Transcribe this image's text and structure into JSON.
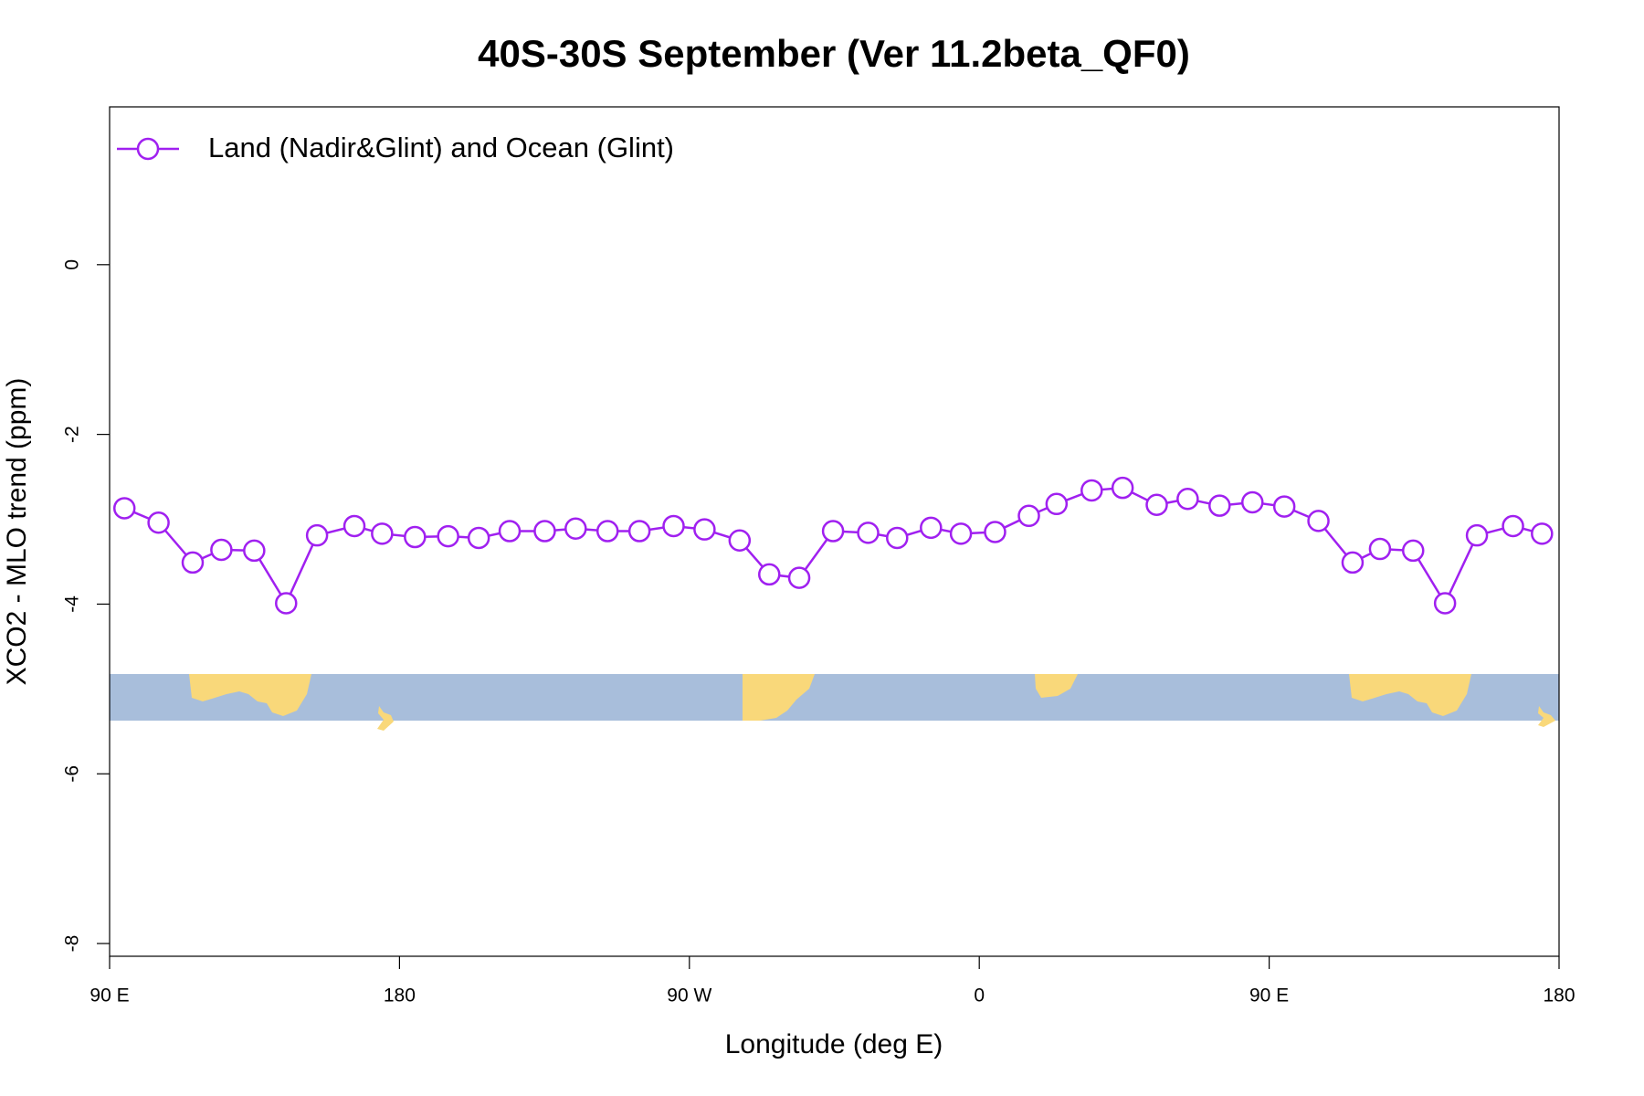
{
  "chart_data": {
    "type": "line",
    "title": "40S-30S September (Ver 11.2beta_QF0)",
    "x_label": "Longitude (deg E)",
    "y_label": "XCO2 - MLO trend (ppm)",
    "x": [
      94.6,
      105.2,
      115.8,
      124.7,
      134.9,
      144.8,
      154.4,
      166.0,
      174.6,
      184.8,
      195.1,
      204.6,
      214.2,
      225.1,
      234.7,
      244.6,
      254.5,
      265.1,
      274.7,
      285.6,
      294.8,
      304.1,
      314.6,
      325.5,
      334.5,
      345.0,
      354.3,
      364.9,
      375.4,
      384.0,
      394.9,
      404.5,
      415.1,
      424.7,
      434.6,
      444.8,
      454.7,
      465.3,
      475.9,
      484.4,
      494.7,
      504.6,
      514.5,
      525.7,
      534.7
    ],
    "series": [
      {
        "name": "Land (Nadir&Glint) and Ocean (Glint)",
        "color": "#a020f0",
        "values": [
          -2.87,
          -3.04,
          -3.51,
          -3.36,
          -3.37,
          -3.99,
          -3.19,
          -3.08,
          -3.17,
          -3.21,
          -3.2,
          -3.22,
          -3.14,
          -3.14,
          -3.11,
          -3.14,
          -3.14,
          -3.08,
          -3.12,
          -3.25,
          -3.65,
          -3.69,
          -3.14,
          -3.16,
          -3.22,
          -3.1,
          -3.17,
          -3.15,
          -2.96,
          -2.82,
          -2.66,
          -2.63,
          -2.83,
          -2.76,
          -2.84,
          -2.8,
          -2.85,
          -3.02,
          -3.51,
          -3.35,
          -3.37,
          -3.99,
          -3.19,
          -3.08,
          -3.17
        ]
      }
    ],
    "xlim": [
      90,
      540
    ],
    "ylim": [
      -8.15,
      1.86
    ],
    "xticks": [
      {
        "value": 90,
        "label": "90 E"
      },
      180,
      {
        "value": 270,
        "label": "90 W"
      },
      {
        "value": 360,
        "label": "0"
      },
      {
        "value": 450,
        "label": "90 E"
      },
      {
        "value": 540,
        "label": "180"
      }
    ],
    "yticks": [
      0,
      -2,
      -4,
      -6,
      -8
    ],
    "legend": "top-left"
  }
}
